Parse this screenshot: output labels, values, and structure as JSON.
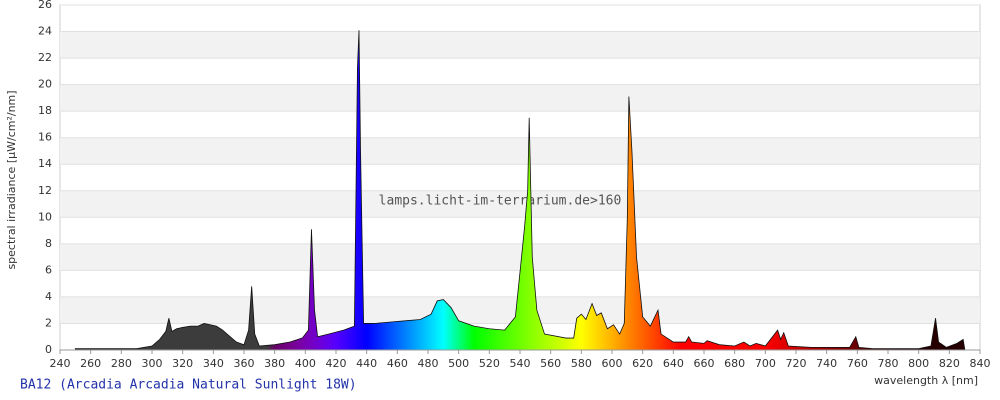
{
  "chart_data": {
    "type": "area",
    "title": "BA12 (Arcadia Arcadia Natural Sunlight 18W)",
    "watermark": "lamps.licht-im-terrarium.de>160",
    "xlabel": "wavelength λ [nm]",
    "ylabel": "spectral irradiance [µW/cm²/nm]",
    "xlim": [
      240,
      840
    ],
    "xticks": [
      240,
      260,
      280,
      300,
      320,
      340,
      360,
      380,
      400,
      420,
      440,
      460,
      480,
      500,
      520,
      540,
      560,
      580,
      600,
      620,
      640,
      660,
      680,
      700,
      720,
      740,
      760,
      780,
      800,
      820,
      840
    ],
    "ylim": [
      0,
      26
    ],
    "yticks": [
      0,
      2,
      4,
      6,
      8,
      10,
      12,
      14,
      16,
      18,
      20,
      22,
      24,
      26
    ],
    "grid": true,
    "x": [
      250,
      290,
      300,
      305,
      309,
      311,
      313,
      316,
      320,
      325,
      330,
      334,
      338,
      342,
      346,
      350,
      355,
      360,
      363,
      365,
      367,
      370,
      380,
      390,
      398,
      402,
      404,
      406,
      408,
      415,
      425,
      432,
      434,
      435,
      436,
      438,
      445,
      455,
      465,
      475,
      482,
      486,
      490,
      495,
      500,
      510,
      520,
      530,
      537,
      541,
      543,
      545,
      546,
      548,
      551,
      556,
      570,
      575,
      577,
      580,
      583,
      587,
      590,
      593,
      597,
      601,
      605,
      608,
      610,
      611,
      613,
      616,
      620,
      625,
      630,
      632,
      640,
      648,
      650,
      652,
      660,
      662,
      670,
      680,
      686,
      690,
      694,
      700,
      706,
      708,
      710,
      712,
      715,
      730,
      755,
      759,
      761,
      770,
      800,
      808,
      811,
      813,
      818,
      825,
      829,
      830
    ],
    "values": [
      0.1,
      0.1,
      0.3,
      0.8,
      1.4,
      2.4,
      1.4,
      1.6,
      1.7,
      1.8,
      1.8,
      2.0,
      1.9,
      1.8,
      1.5,
      1.1,
      0.6,
      0.4,
      1.5,
      4.8,
      1.2,
      0.3,
      0.4,
      0.6,
      0.9,
      1.5,
      9.1,
      3.0,
      1.0,
      1.2,
      1.5,
      1.8,
      21.3,
      24.1,
      15,
      2.0,
      2.0,
      2.1,
      2.2,
      2.3,
      2.7,
      3.7,
      3.8,
      3.2,
      2.2,
      1.8,
      1.6,
      1.5,
      2.5,
      7,
      9.3,
      12,
      17.5,
      7,
      3,
      1.2,
      0.9,
      0.9,
      2.4,
      2.7,
      2.3,
      3.5,
      2.6,
      2.8,
      1.6,
      1.9,
      1.2,
      2,
      10,
      19.1,
      15,
      7,
      2.5,
      1.8,
      3.0,
      1.2,
      0.6,
      0.6,
      1.0,
      0.6,
      0.5,
      0.7,
      0.4,
      0.3,
      0.6,
      0.3,
      0.5,
      0.3,
      1.2,
      1.5,
      0.8,
      1.3,
      0.3,
      0.2,
      0.2,
      1.0,
      0.2,
      0.1,
      0.1,
      0.3,
      2.4,
      0.6,
      0.2,
      0.5,
      0.8,
      0.1
    ]
  }
}
